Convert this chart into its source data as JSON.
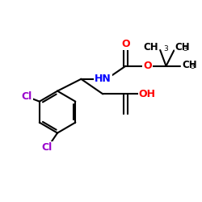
{
  "bg_color": "#ffffff",
  "bond_color": "#000000",
  "bond_width": 1.5,
  "atom_colors": {
    "O": "#ff0000",
    "N": "#0000ff",
    "Cl": "#9900cc",
    "C": "#000000",
    "H": "#000000"
  },
  "font_size": 8.5,
  "figsize": [
    2.5,
    2.5
  ],
  "dpi": 100,
  "xlim": [
    0,
    10
  ],
  "ylim": [
    0,
    10
  ]
}
